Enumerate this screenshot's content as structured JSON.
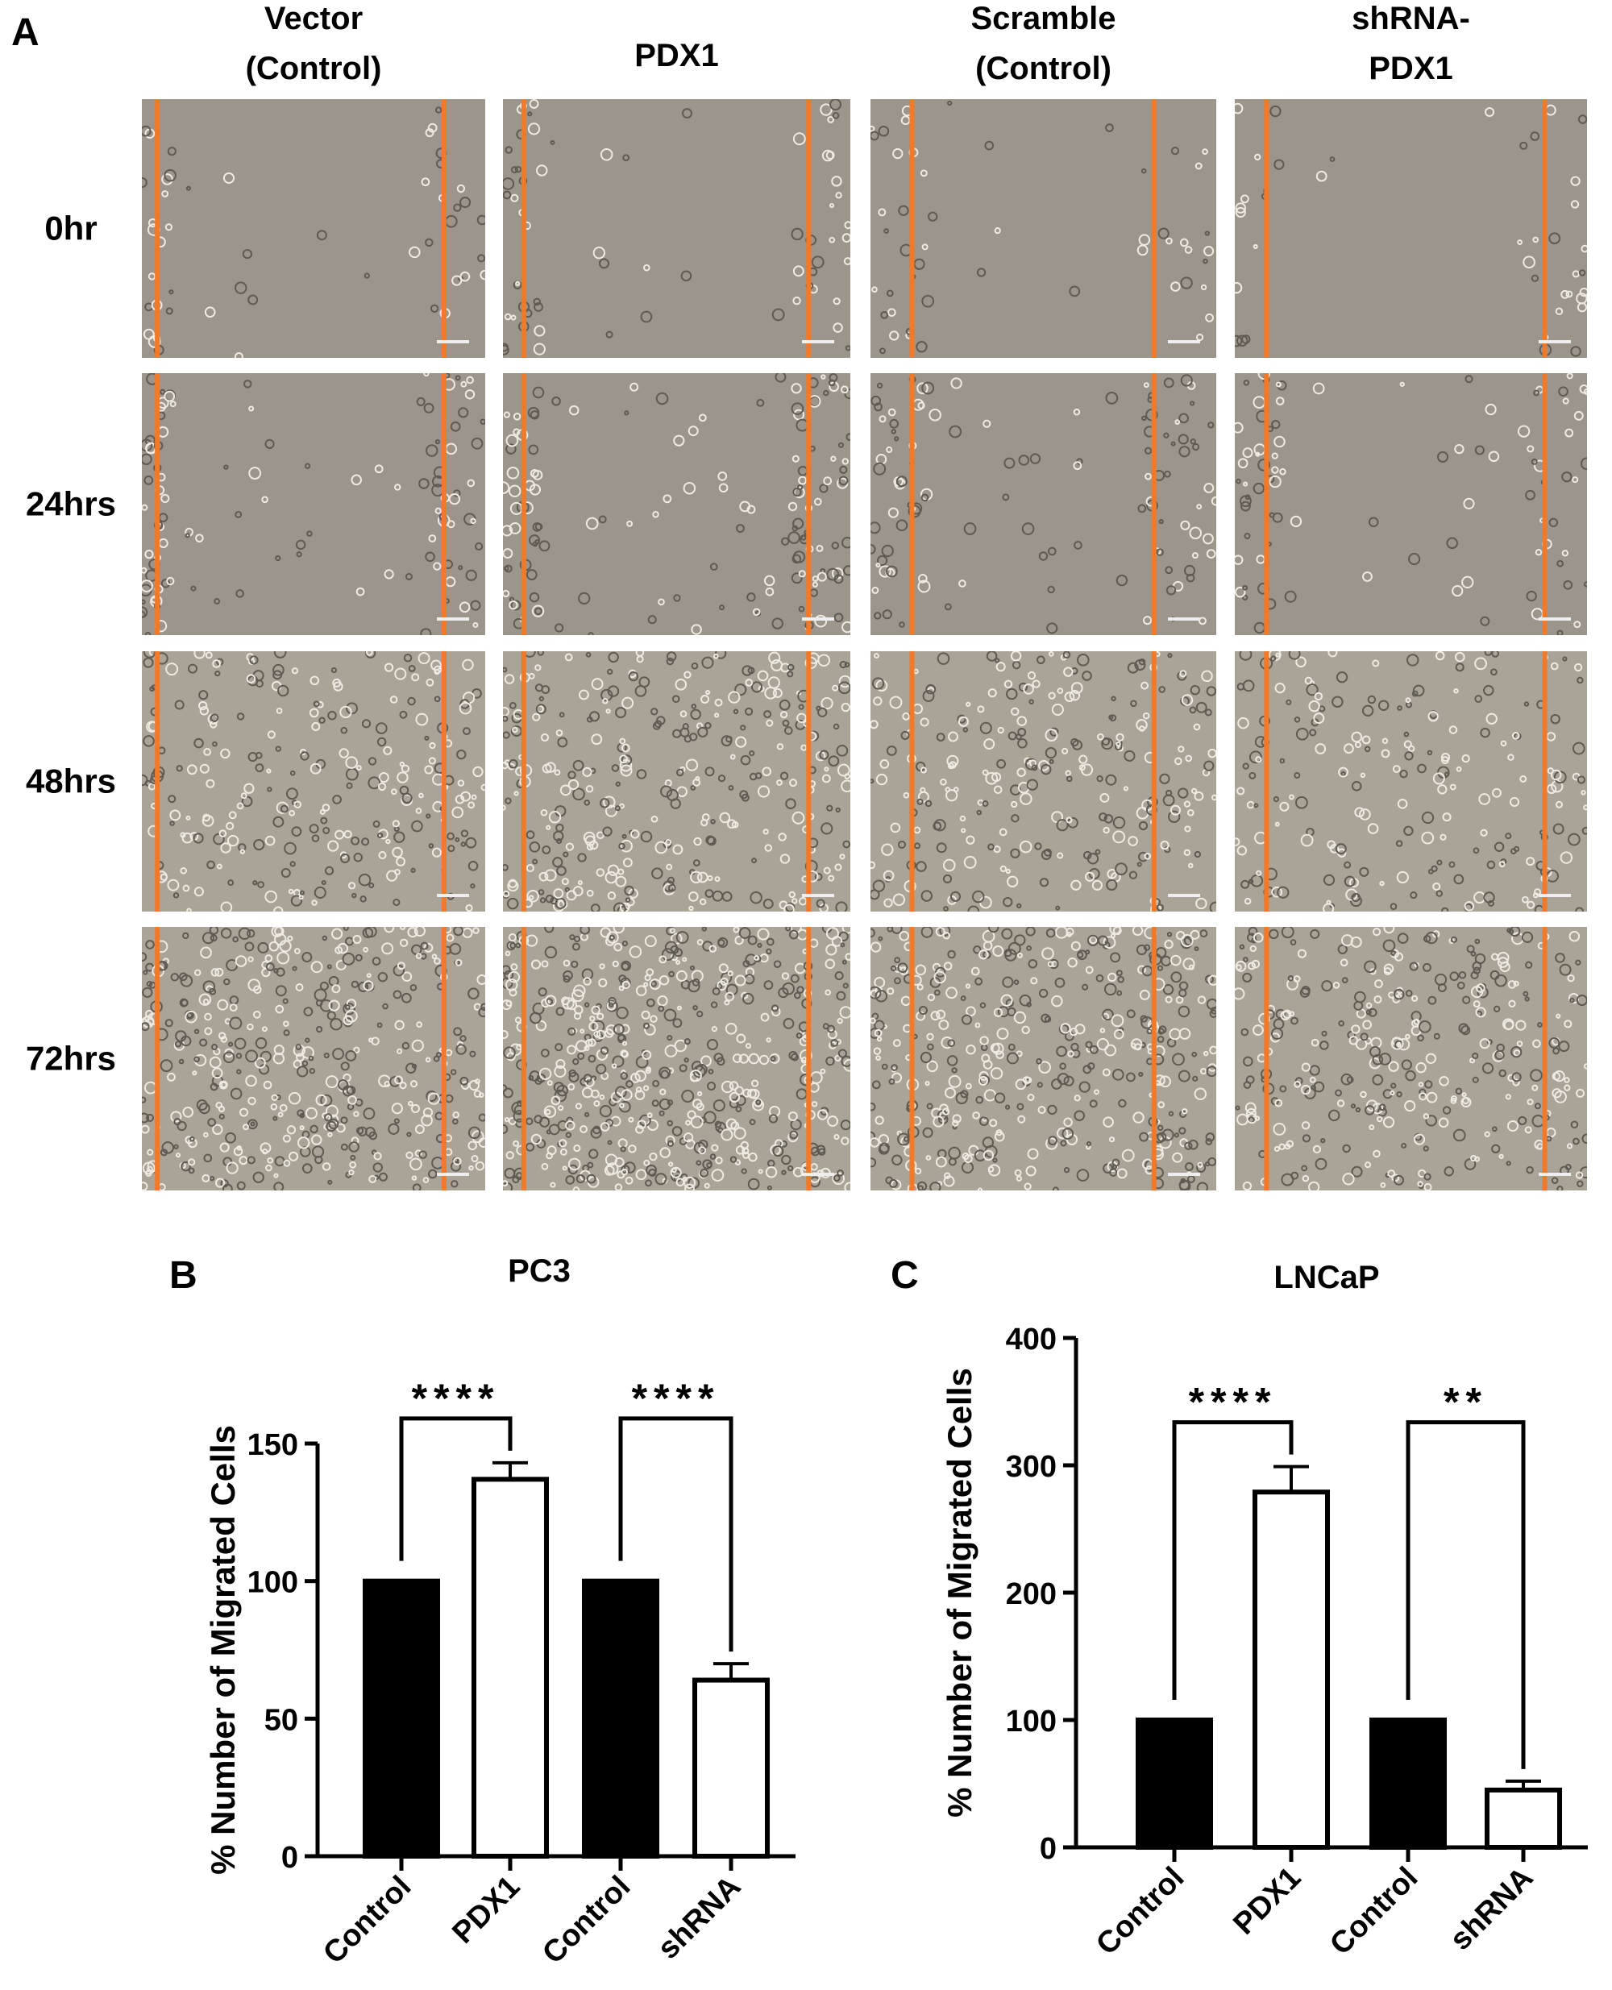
{
  "panel_a": {
    "label": "A",
    "columns": [
      [
        "Vector",
        "(Control)"
      ],
      [
        "PDX1"
      ],
      [
        "Scramble",
        "(Control)"
      ],
      [
        "shRNA-",
        "PDX1"
      ]
    ],
    "rows": [
      "0hr",
      "24hrs",
      "48hrs",
      "72hrs"
    ]
  },
  "chart_data": [
    {
      "type": "bar",
      "panel_label": "B",
      "title": "PC3",
      "y_label": "% Number of Migrated Cells",
      "categories": [
        "Control",
        "PDX1",
        "Control",
        "shRNA"
      ],
      "values": [
        100,
        137,
        100,
        64
      ],
      "errors": [
        0,
        6,
        0,
        6
      ],
      "colors": [
        "#000000",
        "#ffffff",
        "#000000",
        "#ffffff"
      ],
      "ylim": [
        0,
        150
      ],
      "yticks": [
        0,
        50,
        100,
        150
      ],
      "significance": [
        {
          "label": "****",
          "pair": [
            0,
            1
          ]
        },
        {
          "label": "****",
          "pair": [
            2,
            3
          ]
        }
      ]
    },
    {
      "type": "bar",
      "panel_label": "C",
      "title": "LNCaP",
      "y_label": "% Number of Migrated Cells",
      "categories": [
        "Control",
        "PDX1",
        "Control",
        "shRNA"
      ],
      "values": [
        100,
        279,
        100,
        45
      ],
      "errors": [
        0,
        20,
        0,
        7
      ],
      "colors": [
        "#000000",
        "#ffffff",
        "#000000",
        "#ffffff"
      ],
      "ylim": [
        0,
        400
      ],
      "yticks": [
        0,
        100,
        200,
        300,
        400
      ],
      "significance": [
        {
          "label": "****",
          "pair": [
            0,
            1
          ]
        },
        {
          "label": "**",
          "pair": [
            2,
            3
          ]
        }
      ]
    }
  ]
}
